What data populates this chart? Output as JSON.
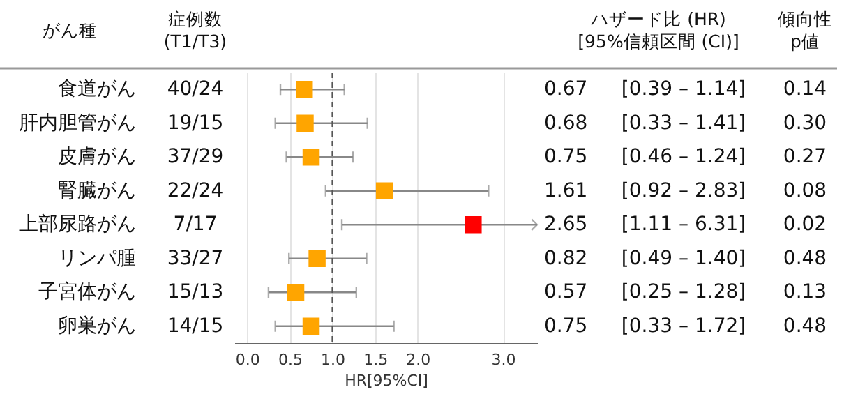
{
  "chart_data": {
    "type": "scatter",
    "orientation": "horizontal",
    "categories": [
      "食道がん",
      "肝内胆管がん",
      "皮膚がん",
      "腎臓がん",
      "上部尿路がん",
      "リンパ腫",
      "子宮体がん",
      "卵巣がん"
    ],
    "values": [
      0.67,
      0.68,
      0.75,
      1.61,
      2.65,
      0.82,
      0.57,
      0.75
    ],
    "colors": [
      "#ffa500",
      "#ffa500",
      "#ffa500",
      "#ffa500",
      "#ff0000",
      "#ffa500",
      "#ffa500",
      "#ffa500"
    ],
    "errors": [
      [
        0.39,
        1.14
      ],
      [
        0.33,
        1.41
      ],
      [
        0.46,
        1.24
      ],
      [
        0.92,
        2.83
      ],
      [
        1.11,
        6.31
      ],
      [
        0.49,
        1.4
      ],
      [
        0.25,
        1.28
      ],
      [
        0.33,
        1.72
      ]
    ],
    "data_labels": true,
    "xlim": [
      -0.15,
      3.4
    ],
    "xticks": [
      {
        "value": 0,
        "label": "0.0"
      },
      {
        "value": 0.5,
        "label": "0.5"
      },
      {
        "value": 1,
        "label": "1.0"
      },
      {
        "value": 1.5,
        "label": "1.5"
      },
      {
        "value": 2,
        "label": "2.0"
      },
      {
        "value": 3,
        "label": "3.0"
      }
    ],
    "xlabel": "HR[95%CI]",
    "grid": "x",
    "marker": "square",
    "ref_lines": [
      {
        "axis": "x",
        "value": 1,
        "line_style": "dashed"
      }
    ],
    "annotations": [
      "がん種",
      "症例数\n(T1/T3)",
      "ハザード比 (HR)\n[95%信頼区間 (CI)]",
      "傾向性\np値",
      "40/24",
      "[0.39 – 1.14]",
      "0.14",
      "19/15",
      "[0.33 – 1.41]",
      "0.30",
      "37/29",
      "[0.46 – 1.24]",
      "0.27",
      "22/24",
      "[0.92 – 2.83]",
      "0.08",
      "7/17",
      "[1.11 – 6.31]",
      "0.02",
      "33/27",
      "[0.49 – 1.40]",
      "0.48",
      "15/13",
      "[0.25 – 1.28]",
      "0.13",
      "14/15",
      "[0.33 – 1.72]",
      "0.48"
    ]
  }
}
